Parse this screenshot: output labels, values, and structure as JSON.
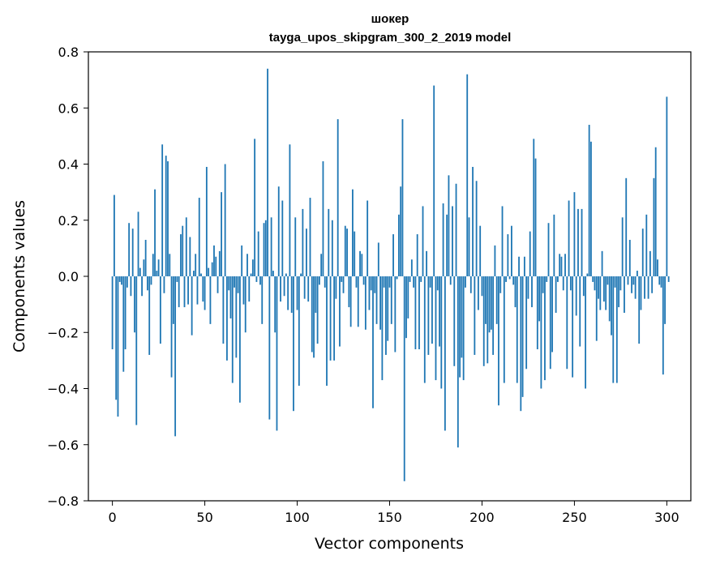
{
  "chart_data": {
    "type": "bar",
    "title": "шокер",
    "subtitle": "tayga_upos_skipgram_300_2_2019 model",
    "xlabel": "Vector components",
    "ylabel": "Components values",
    "xlim": [
      -13,
      313
    ],
    "ylim": [
      -0.8,
      0.8
    ],
    "x_ticks": [
      0,
      50,
      100,
      150,
      200,
      250,
      300
    ],
    "x_tick_labels": [
      "0",
      "50",
      "100",
      "150",
      "200",
      "250",
      "300"
    ],
    "y_ticks": [
      -0.8,
      -0.6,
      -0.4,
      -0.2,
      0.0,
      0.2,
      0.4,
      0.6,
      0.8
    ],
    "y_tick_labels": [
      "−0.8",
      "−0.6",
      "−0.4",
      "−0.2",
      "0.0",
      "0.2",
      "0.4",
      "0.6",
      "0.8"
    ],
    "grid": false,
    "bar_color": "#1f77b4",
    "values": [
      -0.26,
      0.29,
      -0.44,
      -0.5,
      -0.02,
      -0.03,
      -0.34,
      -0.26,
      -0.04,
      0.19,
      -0.07,
      0.17,
      -0.2,
      -0.53,
      0.23,
      0.03,
      -0.07,
      0.06,
      0.13,
      -0.05,
      -0.28,
      -0.03,
      0.08,
      0.31,
      0.02,
      0.06,
      -0.24,
      0.47,
      -0.06,
      0.43,
      0.41,
      0.08,
      -0.36,
      -0.17,
      -0.57,
      -0.02,
      -0.11,
      0.15,
      0.18,
      -0.11,
      0.21,
      -0.1,
      0.14,
      -0.21,
      0.02,
      0.08,
      -0.1,
      0.28,
      0.01,
      -0.09,
      -0.12,
      0.39,
      0.03,
      -0.17,
      0.05,
      0.11,
      0.07,
      -0.06,
      0.09,
      0.3,
      -0.24,
      0.4,
      -0.3,
      -0.05,
      -0.15,
      -0.38,
      -0.04,
      -0.29,
      -0.06,
      -0.45,
      0.11,
      -0.1,
      -0.2,
      0.08,
      -0.09,
      0.01,
      0.06,
      0.49,
      -0.02,
      0.16,
      -0.03,
      -0.17,
      0.19,
      0.2,
      0.74,
      -0.51,
      0.21,
      0.02,
      -0.2,
      -0.55,
      0.32,
      -0.09,
      0.27,
      -0.07,
      0.01,
      -0.12,
      0.47,
      -0.13,
      -0.48,
      0.21,
      -0.12,
      -0.39,
      0.01,
      0.24,
      -0.08,
      0.17,
      -0.09,
      0.28,
      -0.27,
      -0.29,
      -0.13,
      -0.24,
      -0.03,
      0.08,
      0.41,
      -0.04,
      -0.39,
      0.24,
      -0.3,
      0.2,
      -0.3,
      -0.08,
      0.56,
      -0.25,
      -0.02,
      -0.06,
      0.18,
      0.17,
      -0.11,
      -0.18,
      0.31,
      0.16,
      -0.04,
      -0.18,
      0.09,
      0.08,
      -0.03,
      -0.19,
      0.27,
      -0.12,
      -0.05,
      -0.47,
      -0.06,
      -0.17,
      0.12,
      -0.19,
      -0.37,
      -0.04,
      -0.28,
      -0.23,
      -0.04,
      -0.17,
      0.15,
      -0.27,
      -0.01,
      0.22,
      0.32,
      0.56,
      -0.73,
      -0.22,
      -0.15,
      -0.02,
      0.06,
      -0.04,
      -0.26,
      0.15,
      -0.26,
      -0.02,
      0.25,
      -0.38,
      0.09,
      -0.28,
      -0.04,
      -0.24,
      0.68,
      -0.37,
      -0.05,
      -0.25,
      -0.4,
      0.26,
      -0.55,
      0.22,
      0.36,
      -0.03,
      0.25,
      -0.32,
      0.33,
      -0.61,
      -0.36,
      -0.29,
      -0.37,
      -0.04,
      0.72,
      0.21,
      -0.06,
      0.39,
      -0.28,
      0.34,
      -0.12,
      0.18,
      -0.07,
      -0.32,
      -0.17,
      -0.31,
      -0.2,
      -0.19,
      -0.28,
      0.11,
      -0.17,
      -0.46,
      -0.06,
      0.25,
      -0.38,
      -0.02,
      0.15,
      -0.01,
      0.18,
      -0.03,
      -0.11,
      -0.38,
      0.07,
      -0.48,
      -0.43,
      0.07,
      -0.33,
      -0.08,
      0.16,
      -0.11,
      0.49,
      0.42,
      -0.26,
      -0.16,
      -0.4,
      -0.06,
      -0.37,
      -0.02,
      0.19,
      -0.33,
      -0.27,
      0.22,
      -0.13,
      -0.02,
      0.08,
      0.07,
      -0.05,
      0.08,
      -0.33,
      0.27,
      -0.05,
      -0.36,
      0.3,
      -0.14,
      0.24,
      -0.25,
      0.24,
      -0.07,
      -0.4,
      0.01,
      0.54,
      0.48,
      -0.02,
      -0.05,
      -0.23,
      -0.08,
      -0.12,
      0.09,
      -0.09,
      -0.12,
      -0.03,
      -0.16,
      -0.21,
      -0.38,
      -0.04,
      -0.38,
      -0.11,
      -0.05,
      0.21,
      -0.13,
      0.35,
      -0.03,
      0.13,
      -0.06,
      -0.03,
      -0.08,
      0.02,
      -0.24,
      -0.12,
      0.17,
      -0.08,
      0.22,
      -0.08,
      0.09,
      -0.06,
      0.35,
      0.46,
      0.06,
      -0.03,
      -0.04,
      -0.35,
      -0.17,
      0.64,
      -0.02
    ]
  }
}
